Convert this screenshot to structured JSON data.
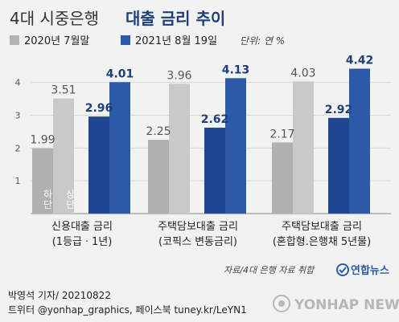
{
  "title_prefix": "4대 시중은행",
  "title_main": "대출 금리 추이",
  "legend": [
    {
      "label": "2020년 7월말",
      "color": "#b3b3b3"
    },
    {
      "label": "2021년 8월 19일",
      "color": "#2b5aa8"
    }
  ],
  "unit": "단위: 연 %",
  "source": "자료/4대 은행 자료 취합",
  "brand": "연합뉴스",
  "credit_line1": "박영석 기자/ 20210822",
  "credit_line2": "트위터 @yonhap_graphics, 페이스북 tuney.kr/LeYN1",
  "watermark": "YONHAP NEWS",
  "annotations": {
    "low": "하단",
    "high": "상단"
  },
  "chart_data": {
    "type": "bar",
    "y_ticks": [
      "1",
      "2",
      "3",
      "4"
    ],
    "ylim": [
      0,
      4.8
    ],
    "groups": [
      {
        "label_line1": "신용대출 금리",
        "label_line2": "(1등급ㆍ1년)",
        "bars": [
          {
            "series": "2020년 7월말",
            "low": 1.99,
            "high": 3.51,
            "low_label": "1.99",
            "high_label": "3.51"
          },
          {
            "series": "2021년 8월 19일",
            "low": 2.96,
            "high": 4.01,
            "low_label": "2.96",
            "high_label": "4.01"
          }
        ]
      },
      {
        "label_line1": "주택담보대출 금리",
        "label_line2": "(코픽스 변동금리)",
        "bars": [
          {
            "series": "2020년 7월말",
            "low": 2.25,
            "high": 3.96,
            "low_label": "2.25",
            "high_label": "3.96"
          },
          {
            "series": "2021년 8월 19일",
            "low": 2.62,
            "high": 4.13,
            "low_label": "2.62",
            "high_label": "4.13"
          }
        ]
      },
      {
        "label_line1": "주택담보대출 금리",
        "label_line2": "(혼합형.은행채 5년물)",
        "bars": [
          {
            "series": "2020년 7월말",
            "low": 2.17,
            "high": 4.03,
            "low_label": "2.17",
            "high_label": "4.03"
          },
          {
            "series": "2021년 8월 19일",
            "low": 2.92,
            "high": 4.42,
            "low_label": "2.92",
            "high_label": "4.42"
          }
        ]
      }
    ]
  }
}
